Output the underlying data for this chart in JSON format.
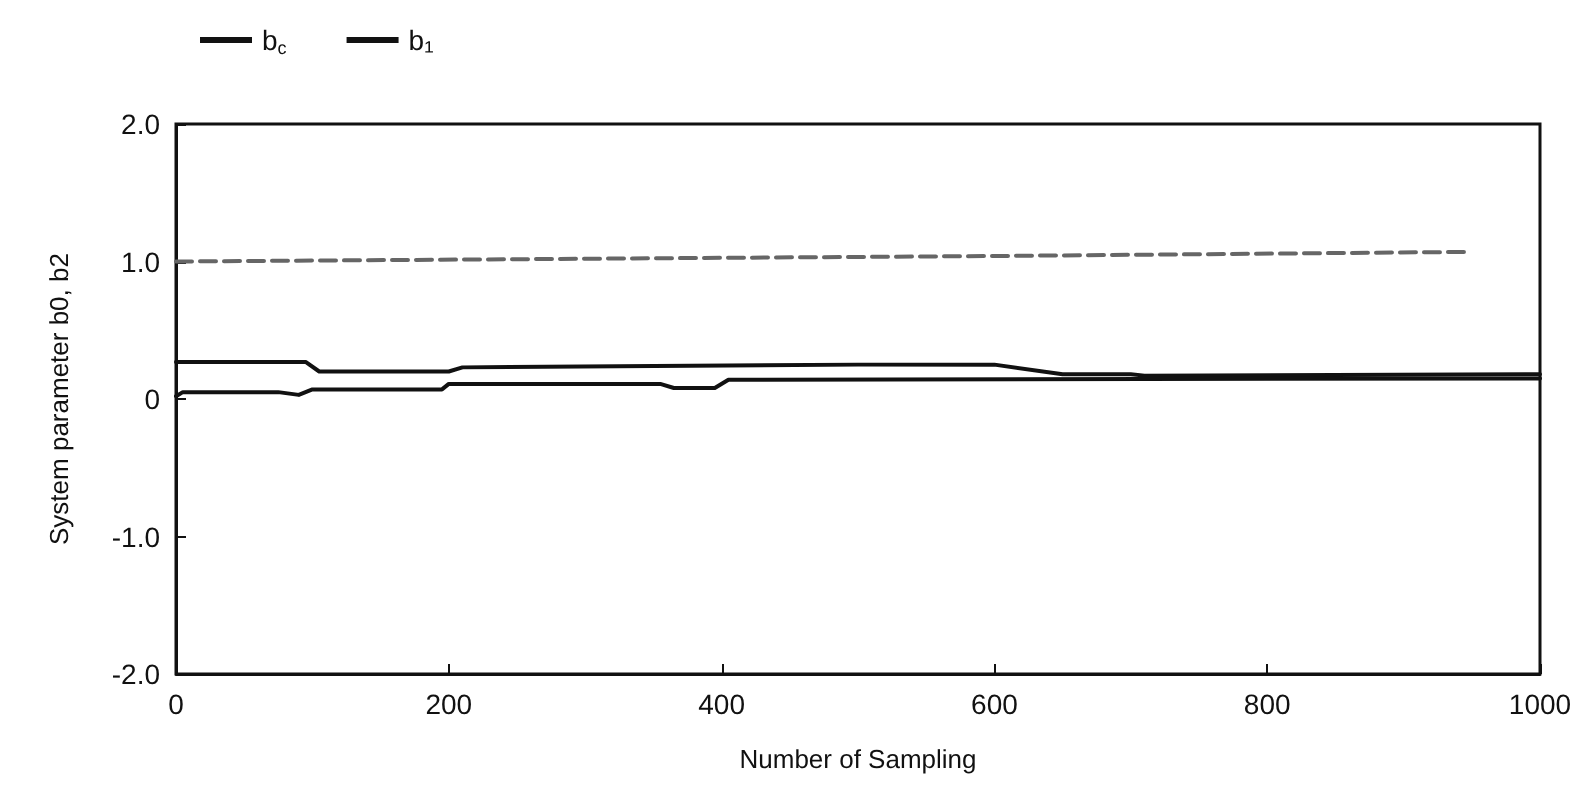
{
  "chart_data": {
    "type": "line",
    "xlabel": "Number of Sampling",
    "ylabel": "System parameter b0, b2",
    "xlim": [
      0,
      1000
    ],
    "xticks": [
      0,
      200,
      400,
      600,
      800,
      1000
    ],
    "ylim": [
      -2,
      2
    ],
    "yticks": [
      {
        "value": -2,
        "label": "-2.0"
      },
      {
        "value": -1,
        "label": "-1.0"
      },
      0,
      {
        "value": 1,
        "label": "1.0"
      },
      {
        "value": 2,
        "label": "2.0"
      }
    ],
    "grid": false,
    "legend": "top left",
    "marker": "none",
    "line_style": "solid",
    "series": [
      {
        "name": "b$_{c}$",
        "color": "#111111",
        "x": [
          0,
          95,
          105,
          200,
          210,
          500,
          600,
          650,
          700,
          710,
          1000
        ],
        "values": [
          0.27,
          0.27,
          0.2,
          0.2,
          0.23,
          0.25,
          0.25,
          0.18,
          0.18,
          0.17,
          0.18
        ]
      },
      {
        "name": "b₁",
        "color": "#111111",
        "x": [
          0,
          5,
          75,
          90,
          100,
          195,
          200,
          355,
          365,
          395,
          405,
          1000
        ],
        "values": [
          0.02,
          0.05,
          0.05,
          0.03,
          0.07,
          0.07,
          0.11,
          0.11,
          0.08,
          0.08,
          0.14,
          0.15
        ]
      },
      {
        "color": "#666666",
        "line_style": "dashed",
        "x": [
          0,
          300,
          600,
          950
        ],
        "values": [
          1.0,
          1.02,
          1.04,
          1.07
        ]
      }
    ]
  }
}
